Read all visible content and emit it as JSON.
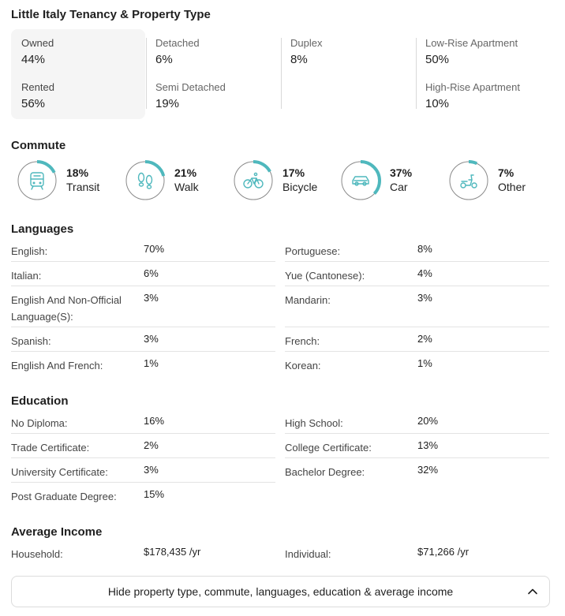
{
  "tenancy": {
    "title": "Little Italy Tenancy & Property Type",
    "owned_label": "Owned",
    "owned_value": "44%",
    "rented_label": "Rented",
    "rented_value": "56%",
    "detached_label": "Detached",
    "detached_value": "6%",
    "semi_label": "Semi Detached",
    "semi_value": "19%",
    "duplex_label": "Duplex",
    "duplex_value": "8%",
    "lowrise_label": "Low-Rise Apartment",
    "lowrise_value": "50%",
    "highrise_label": "High-Rise Apartment",
    "highrise_value": "10%"
  },
  "commute": {
    "title": "Commute",
    "accent": "#4fb8bd",
    "items": [
      {
        "icon": "train-icon",
        "pct": "18%",
        "label": "Transit",
        "fraction": 0.18
      },
      {
        "icon": "footprints-icon",
        "pct": "21%",
        "label": "Walk",
        "fraction": 0.21
      },
      {
        "icon": "bicycle-icon",
        "pct": "17%",
        "label": "Bicycle",
        "fraction": 0.17
      },
      {
        "icon": "car-icon",
        "pct": "37%",
        "label": "Car",
        "fraction": 0.37
      },
      {
        "icon": "scooter-icon",
        "pct": "7%",
        "label": "Other",
        "fraction": 0.07
      }
    ]
  },
  "languages": {
    "title": "Languages",
    "left": [
      {
        "k": "English:",
        "v": "70%"
      },
      {
        "k": "Italian:",
        "v": "6%"
      },
      {
        "k": "English And Non-Official Language(S):",
        "v": "3%"
      },
      {
        "k": "Spanish:",
        "v": "3%"
      },
      {
        "k": "English And French:",
        "v": "1%"
      }
    ],
    "right": [
      {
        "k": "Portuguese:",
        "v": "8%"
      },
      {
        "k": "Yue (Cantonese):",
        "v": "4%"
      },
      {
        "k": "Mandarin:",
        "v": "3%"
      },
      {
        "k": "French:",
        "v": "2%"
      },
      {
        "k": "Korean:",
        "v": "1%"
      }
    ]
  },
  "education": {
    "title": "Education",
    "left": [
      {
        "k": "No Diploma:",
        "v": "16%"
      },
      {
        "k": "Trade Certificate:",
        "v": "2%"
      },
      {
        "k": "University Certificate:",
        "v": "3%"
      },
      {
        "k": "Post Graduate Degree:",
        "v": "15%"
      }
    ],
    "right": [
      {
        "k": "High School:",
        "v": "20%"
      },
      {
        "k": "College Certificate:",
        "v": "13%"
      },
      {
        "k": "Bachelor Degree:",
        "v": "32%"
      }
    ]
  },
  "income": {
    "title": "Average Income",
    "household_label": "Household:",
    "household_value": "$178,435 /yr",
    "individual_label": "Individual:",
    "individual_value": "$71,266 /yr"
  },
  "toggle": {
    "label": "Hide property type, commute, languages, education & average income"
  }
}
